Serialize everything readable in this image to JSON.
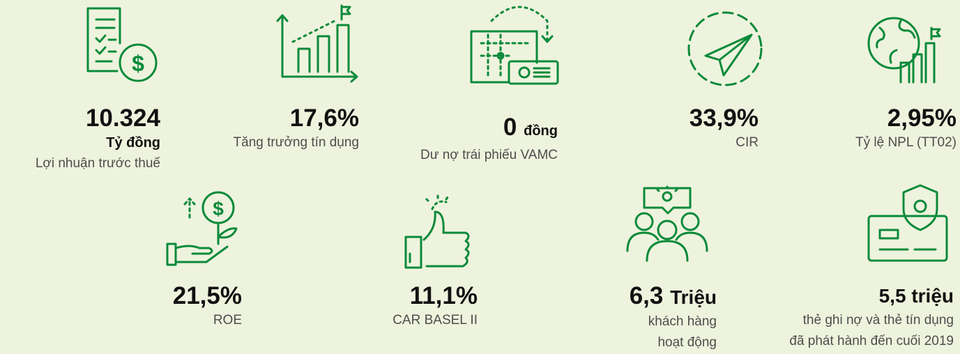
{
  "items": [
    {
      "value": "10.324",
      "unit": "Tỷ đồng",
      "label": [
        "Lợi nhuận trước thuế"
      ]
    },
    {
      "value": "17,6%",
      "label": [
        "Tăng trưởng tín dụng"
      ]
    },
    {
      "value": "0",
      "unit": "đồng",
      "label": [
        "Dư nợ trái phiếu VAMC"
      ]
    },
    {
      "value": "33,9%",
      "label": [
        "CIR"
      ]
    },
    {
      "value": "2,95%",
      "label": [
        "Tỷ lệ NPL (TT02)"
      ]
    },
    {
      "value": "21,5%",
      "label": [
        "ROE"
      ]
    },
    {
      "value": "11,1%",
      "label": [
        "CAR BASEL II"
      ]
    },
    {
      "value": "6,3",
      "unit": "Triệu",
      "label": [
        "khách hàng",
        "hoạt động"
      ]
    },
    {
      "value": "5,5 triệu",
      "label": [
        "thẻ ghi nợ và thẻ tín dụng",
        "đã phát hành đến cuối 2019"
      ]
    }
  ]
}
